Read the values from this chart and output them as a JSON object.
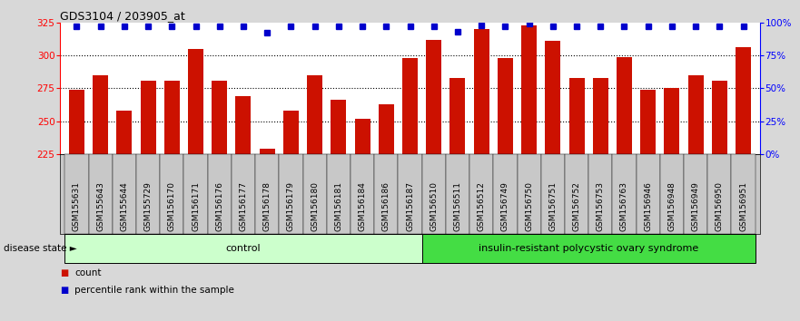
{
  "title": "GDS3104 / 203905_at",
  "samples": [
    "GSM155631",
    "GSM155643",
    "GSM155644",
    "GSM155729",
    "GSM156170",
    "GSM156171",
    "GSM156176",
    "GSM156177",
    "GSM156178",
    "GSM156179",
    "GSM156180",
    "GSM156181",
    "GSM156184",
    "GSM156186",
    "GSM156187",
    "GSM156510",
    "GSM156511",
    "GSM156512",
    "GSM156749",
    "GSM156750",
    "GSM156751",
    "GSM156752",
    "GSM156753",
    "GSM156763",
    "GSM156946",
    "GSM156948",
    "GSM156949",
    "GSM156950",
    "GSM156951"
  ],
  "counts": [
    274,
    285,
    258,
    281,
    281,
    305,
    281,
    269,
    229,
    258,
    285,
    266,
    252,
    263,
    298,
    312,
    283,
    320,
    298,
    323,
    311,
    283,
    283,
    299,
    274,
    275,
    285,
    281,
    306
  ],
  "percentiles": [
    97,
    97,
    97,
    97,
    97,
    97,
    97,
    97,
    92,
    97,
    97,
    97,
    97,
    97,
    97,
    97,
    93,
    98,
    97,
    99,
    97,
    97,
    97,
    97,
    97,
    97,
    97,
    97,
    97
  ],
  "n_control": 15,
  "ylim_left": [
    225,
    325
  ],
  "ylim_right": [
    0,
    100
  ],
  "yticks_left": [
    225,
    250,
    275,
    300,
    325
  ],
  "yticks_right": [
    0,
    25,
    50,
    75,
    100
  ],
  "grid_values": [
    250,
    275,
    300
  ],
  "bar_color": "#cc1100",
  "percentile_color": "#0000cc",
  "control_color": "#ccffcc",
  "pcos_color": "#44dd44",
  "fig_bg_color": "#d8d8d8",
  "plot_bg_color": "#ffffff",
  "ticklabel_bg_color": "#c8c8c8",
  "group_label_control": "control",
  "group_label_pcos": "insulin-resistant polycystic ovary syndrome",
  "disease_state_label": "disease state",
  "legend_count": "count",
  "legend_percentile": "percentile rank within the sample"
}
